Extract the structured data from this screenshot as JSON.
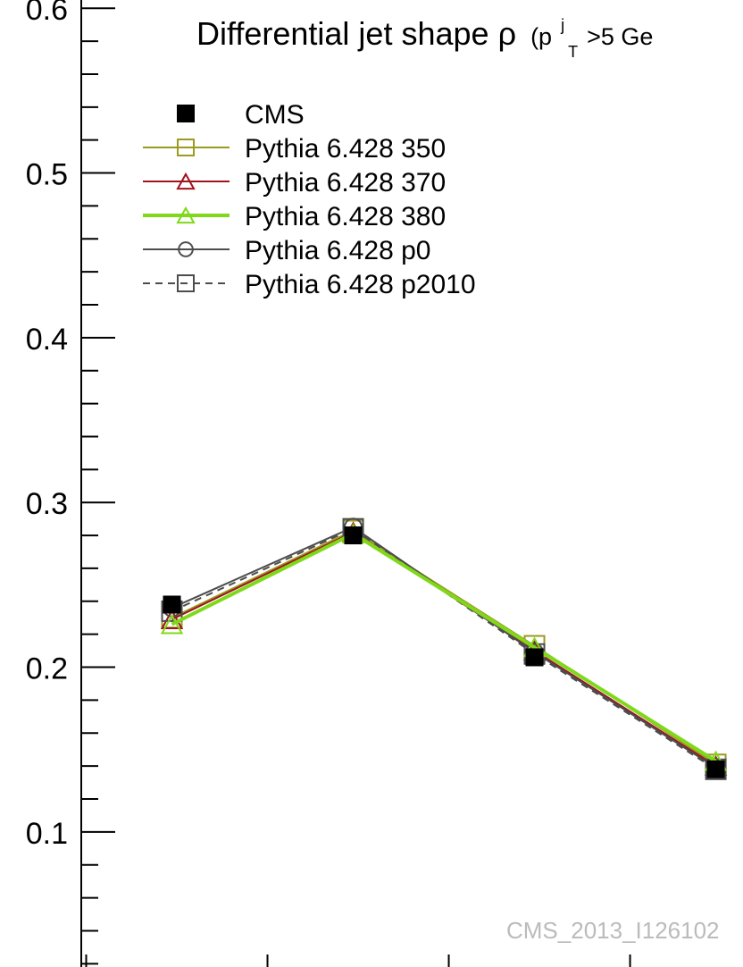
{
  "chart_data": {
    "type": "line",
    "title": "Differential jet shape",
    "title_symbol": "ρ",
    "title_cut_prefix": "(p",
    "title_cut_sup": "j",
    "title_cut_sub": "T",
    "title_cut_rest": ">5 Ge",
    "watermark": "CMS_2013_I126102",
    "xlabel": "",
    "ylabel": "",
    "x": [
      1,
      2,
      3,
      4
    ],
    "xlim": [
      0.5,
      4.15
    ],
    "ylim": [
      0.018,
      0.605
    ],
    "y_ticks": [
      0.1,
      0.2,
      0.3,
      0.4,
      0.5,
      0.6
    ],
    "y_tick_labels": [
      "0.1",
      "0.2",
      "0.3",
      "0.4",
      "0.5",
      "0.6"
    ],
    "grid": false,
    "legend_position": "top-left",
    "series": [
      {
        "name": "CMS",
        "color": "#000000",
        "marker": "filled-square",
        "line": "none",
        "values": [
          0.238,
          0.28,
          0.206,
          0.138
        ]
      },
      {
        "name": "Pythia 6.428 350",
        "color": "#9c9a20",
        "marker": "open-square",
        "line": "solid",
        "values": [
          0.23,
          0.283,
          0.213,
          0.141
        ]
      },
      {
        "name": "Pythia 6.428 370",
        "color": "#a0141e",
        "marker": "open-triangle",
        "line": "solid",
        "values": [
          0.229,
          0.282,
          0.21,
          0.14
        ]
      },
      {
        "name": "Pythia 6.428 380",
        "color": "#7fd91a",
        "marker": "open-triangle",
        "line": "solid-thick",
        "values": [
          0.226,
          0.281,
          0.212,
          0.143
        ]
      },
      {
        "name": "Pythia 6.428 p0",
        "color": "#4d4d4d",
        "marker": "open-circle",
        "line": "solid",
        "values": [
          0.236,
          0.285,
          0.209,
          0.139
        ]
      },
      {
        "name": "Pythia 6.428 p2010",
        "color": "#4d4d4d",
        "marker": "open-square",
        "line": "dashed",
        "values": [
          0.234,
          0.284,
          0.208,
          0.138
        ]
      }
    ]
  }
}
